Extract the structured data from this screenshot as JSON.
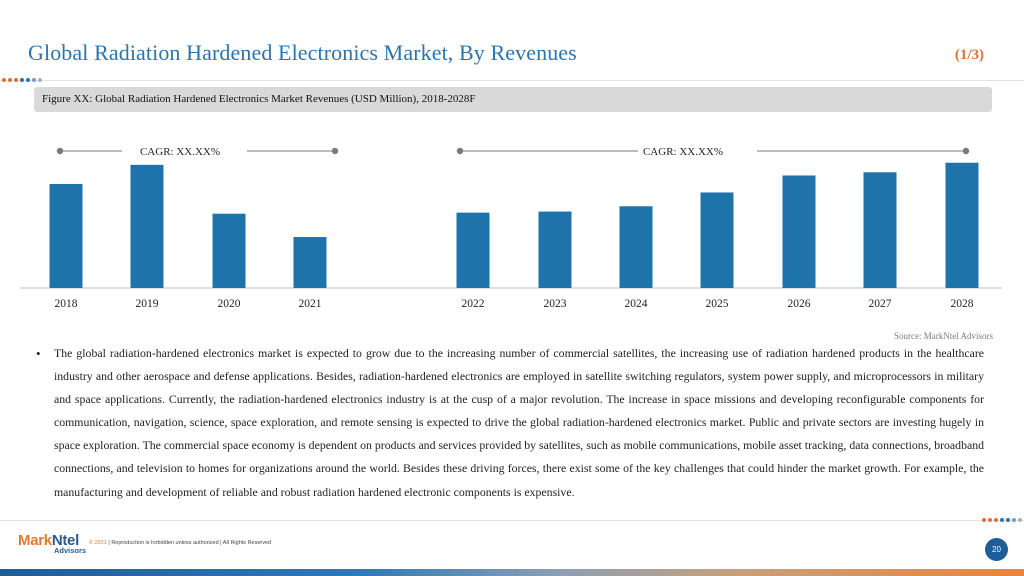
{
  "header": {
    "title": "Global Radiation Hardened Electronics Market, By Revenues",
    "page_marker": "(1/3)"
  },
  "figure_caption": "Figure XX: Global Radiation Hardened Electronics Market Revenues (USD Million), 2018-2028F",
  "chart_data": {
    "type": "bar",
    "title": "",
    "xlabel": "",
    "ylabel": "",
    "categories": [
      "2018",
      "2019",
      "2020",
      "2021",
      "2022",
      "2023",
      "2024",
      "2025",
      "2026",
      "2027",
      "2028"
    ],
    "values": [
      98,
      116,
      70,
      48,
      71,
      72,
      77,
      90,
      106,
      109,
      118
    ],
    "ylim": [
      0,
      130
    ],
    "grid": false,
    "y_axis_shown": false,
    "bar_color": "#1f73ab",
    "annotations": [
      {
        "text": "CAGR: XX.XX%",
        "span": [
          "2018",
          "2021"
        ]
      },
      {
        "text": "CAGR: XX.XX%",
        "span": [
          "2022",
          "2028"
        ]
      }
    ]
  },
  "source": "Source: MarkNtel Advisors",
  "bullet": "The global radiation-hardened electronics market is expected to grow due to the increasing number of commercial satellites, the increasing use of radiation hardened products in the healthcare industry and other aerospace and defense applications. Besides, radiation-hardened electronics are employed in satellite switching regulators, system power supply, and microprocessors in military and space applications. Currently, the radiation-hardened electronics industry is at the cusp of a major revolution. The increase in space missions and developing reconfigurable components for communication, navigation, science, space exploration, and remote sensing is expected to drive the global radiation-hardened electronics market. Public and private sectors are investing hugely in space exploration. The commercial space economy is dependent on products and services provided by satellites, such as mobile communications, mobile asset tracking, data connections, broadband connections, and television to homes for organizations around the world. Besides these driving forces, there exist some of the key challenges that could hinder the market growth. For example, the manufacturing and development of reliable and robust radiation hardened electronic components is expensive.",
  "footer": {
    "logo_mark": "Mark",
    "logo_ntel": "Ntel",
    "logo_sub": "Advisors",
    "copyright_year": "© 2021",
    "copyright_text": " | Reproduction is forbidden unless authorized | All Rights Reserved",
    "page_number": "20"
  },
  "colors": {
    "accent_blue": "#2b74ad",
    "accent_orange": "#e0703a",
    "bar": "#1f73ab",
    "dots": [
      "#e0703a",
      "#e0703a",
      "#e0703a",
      "#2b74ad",
      "#2b74ad",
      "#7a9cc0",
      "#b0b0b0"
    ]
  }
}
